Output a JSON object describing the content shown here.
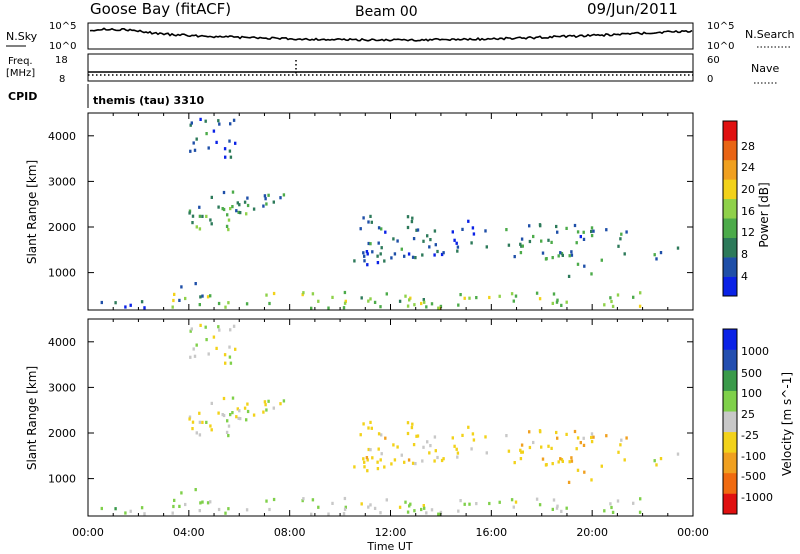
{
  "header": {
    "station": "Goose Bay (fitACF)",
    "beam": "Beam 00",
    "date": "09/Jun/2011"
  },
  "noise_panel": {
    "left_label": "N.Sky",
    "right_label": "N.Search",
    "tick_top": "10^5",
    "tick_bottom": "10^0"
  },
  "freq_panel": {
    "left_label_line1": "Freq.",
    "left_label_line2": "[MHz]",
    "left_tick_top": "18",
    "left_tick_bottom": "8",
    "right_label": "Nave",
    "right_tick_top": "60",
    "right_tick_bottom": "0"
  },
  "cpid_panel": {
    "label": "CPID",
    "value": "themis (tau) 3310"
  },
  "colors": {
    "power": [
      "#0a22e6",
      "#1f4fa8",
      "#2d7a5a",
      "#4cab4a",
      "#8fd14a",
      "#f2d21a",
      "#f0a020",
      "#e86414",
      "#e01010"
    ],
    "velocity": [
      "#e01010",
      "#f06a10",
      "#f0a020",
      "#f2d21a",
      "#c8c8c8",
      "#7fd04a",
      "#3a9a4a",
      "#244fb0",
      "#0a22e6"
    ]
  },
  "chart_data": [
    {
      "type": "heatmap",
      "name": "power",
      "ylabel": "Slant Range [km]",
      "y_ticks": [
        "1000",
        "2000",
        "3000",
        "4000"
      ],
      "ylim": [
        180,
        4500
      ],
      "xlim": [
        0,
        24
      ],
      "colorbar": {
        "label": "Power [dB]",
        "ticks": [
          "4",
          "8",
          "12",
          "16",
          "20",
          "24",
          "28"
        ],
        "range": [
          0,
          30
        ]
      },
      "regions": [
        {
          "t0": 3.8,
          "t1": 6.9,
          "r0": 1950,
          "r1": 2600,
          "v": 12
        },
        {
          "t0": 4.3,
          "t1": 7.8,
          "r0": 2300,
          "r1": 2800,
          "v": 8
        },
        {
          "t0": 3.8,
          "t1": 5.8,
          "r0": 3500,
          "r1": 4400,
          "v": 6
        },
        {
          "t0": 3.5,
          "t1": 4.5,
          "r0": 400,
          "r1": 900,
          "v": 7
        },
        {
          "t0": 10.5,
          "t1": 13.0,
          "r0": 1200,
          "r1": 2300,
          "v": 6
        },
        {
          "t0": 13.0,
          "t1": 16.0,
          "r0": 1400,
          "r1": 2200,
          "v": 6
        },
        {
          "t0": 16.5,
          "t1": 21.5,
          "r0": 1300,
          "r1": 2100,
          "v": 8
        },
        {
          "t0": 19.0,
          "t1": 20.5,
          "r0": 900,
          "r1": 1400,
          "v": 9
        },
        {
          "t0": 22.0,
          "t1": 23.8,
          "r0": 1300,
          "r1": 1700,
          "v": 7
        },
        {
          "t0": 3.3,
          "t1": 22.0,
          "r0": 250,
          "r1": 600,
          "v": 14
        },
        {
          "t0": 0.5,
          "t1": 3.3,
          "r0": 250,
          "r1": 400,
          "v": 5
        }
      ]
    },
    {
      "type": "heatmap",
      "name": "velocity",
      "ylabel": "Slant Range [km]",
      "y_ticks": [
        "1000",
        "2000",
        "3000",
        "4000"
      ],
      "ylim": [
        180,
        4500
      ],
      "xlim": [
        0,
        24
      ],
      "colorbar": {
        "label": "Velocity [m s^-1]",
        "ticks": [
          "1000",
          "500",
          "100",
          "25",
          "-25",
          "-100",
          "-500",
          "-1000"
        ]
      },
      "regions": [
        {
          "t0": 3.8,
          "t1": 6.9,
          "r0": 1950,
          "r1": 2600,
          "v": 0
        },
        {
          "t0": 4.3,
          "t1": 7.8,
          "r0": 2300,
          "r1": 2800,
          "v": 0
        },
        {
          "t0": 3.8,
          "t1": 5.8,
          "r0": 3500,
          "r1": 4400,
          "v": 10
        },
        {
          "t0": 3.5,
          "t1": 4.5,
          "r0": 400,
          "r1": 900,
          "v": 50
        },
        {
          "t0": 10.5,
          "t1": 13.0,
          "r0": 1200,
          "r1": 2300,
          "v": -60
        },
        {
          "t0": 13.0,
          "t1": 16.0,
          "r0": 1400,
          "r1": 2200,
          "v": -30
        },
        {
          "t0": 16.5,
          "t1": 21.5,
          "r0": 1300,
          "r1": 2100,
          "v": -80
        },
        {
          "t0": 19.0,
          "t1": 20.5,
          "r0": 900,
          "r1": 1400,
          "v": -120
        },
        {
          "t0": 22.0,
          "t1": 23.8,
          "r0": 1300,
          "r1": 1700,
          "v": 0
        },
        {
          "t0": 3.3,
          "t1": 22.0,
          "r0": 250,
          "r1": 600,
          "v": 20
        },
        {
          "t0": 0.5,
          "t1": 3.3,
          "r0": 250,
          "r1": 400,
          "v": 60
        }
      ]
    }
  ],
  "x_axis": {
    "label": "Time UT",
    "ticks": [
      "00:00",
      "04:00",
      "08:00",
      "12:00",
      "16:00",
      "20:00",
      "00:00"
    ]
  }
}
